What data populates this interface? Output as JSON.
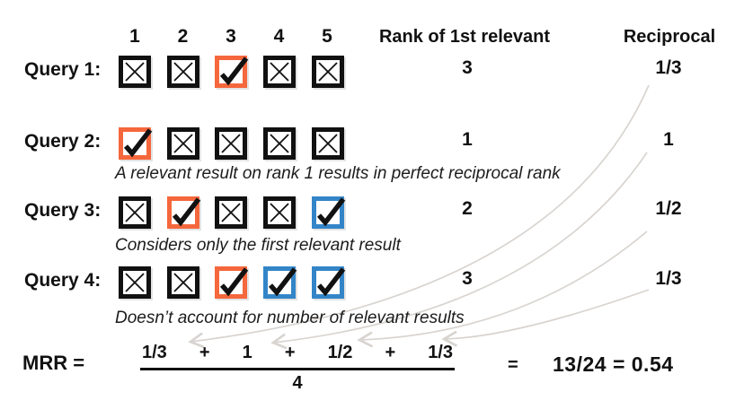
{
  "colors": {
    "ink": "#111111",
    "orange": "#F5673C",
    "blue": "#3385C8",
    "arrow": "#D8D4D0"
  },
  "header": {
    "positions": [
      "1",
      "2",
      "3",
      "4",
      "5"
    ],
    "rank_label": "Rank of 1st relevant",
    "reciprocal_label": "Reciprocal"
  },
  "rows": [
    {
      "label": "Query 1:",
      "boxes": [
        {
          "mark": "x",
          "color": "black"
        },
        {
          "mark": "x",
          "color": "black"
        },
        {
          "mark": "check",
          "color": "orange"
        },
        {
          "mark": "x",
          "color": "black"
        },
        {
          "mark": "x",
          "color": "black"
        }
      ],
      "rank": "3",
      "reciprocal": "1/3",
      "caption": ""
    },
    {
      "label": "Query 2:",
      "boxes": [
        {
          "mark": "check",
          "color": "orange"
        },
        {
          "mark": "x",
          "color": "black"
        },
        {
          "mark": "x",
          "color": "black"
        },
        {
          "mark": "x",
          "color": "black"
        },
        {
          "mark": "x",
          "color": "black"
        }
      ],
      "rank": "1",
      "reciprocal": "1",
      "caption": "A relevant result on rank 1 results in perfect reciprocal rank"
    },
    {
      "label": "Query 3:",
      "boxes": [
        {
          "mark": "x",
          "color": "black"
        },
        {
          "mark": "check",
          "color": "orange"
        },
        {
          "mark": "x",
          "color": "black"
        },
        {
          "mark": "x",
          "color": "black"
        },
        {
          "mark": "check",
          "color": "blue"
        }
      ],
      "rank": "2",
      "reciprocal": "1/2",
      "caption": "Considers only the first relevant result"
    },
    {
      "label": "Query 4:",
      "boxes": [
        {
          "mark": "x",
          "color": "black"
        },
        {
          "mark": "x",
          "color": "black"
        },
        {
          "mark": "check",
          "color": "orange"
        },
        {
          "mark": "check",
          "color": "blue"
        },
        {
          "mark": "check",
          "color": "blue"
        }
      ],
      "rank": "3",
      "reciprocal": "1/3",
      "caption": "Doesn’t account for number of relevant results"
    }
  ],
  "formula": {
    "lhs": "MRR =",
    "numerator_terms": [
      "1/3",
      "+",
      "1",
      "+",
      "1/2",
      "+",
      "1/3"
    ],
    "denominator": "4",
    "equals": "=",
    "result": "13/24 = 0.54"
  }
}
